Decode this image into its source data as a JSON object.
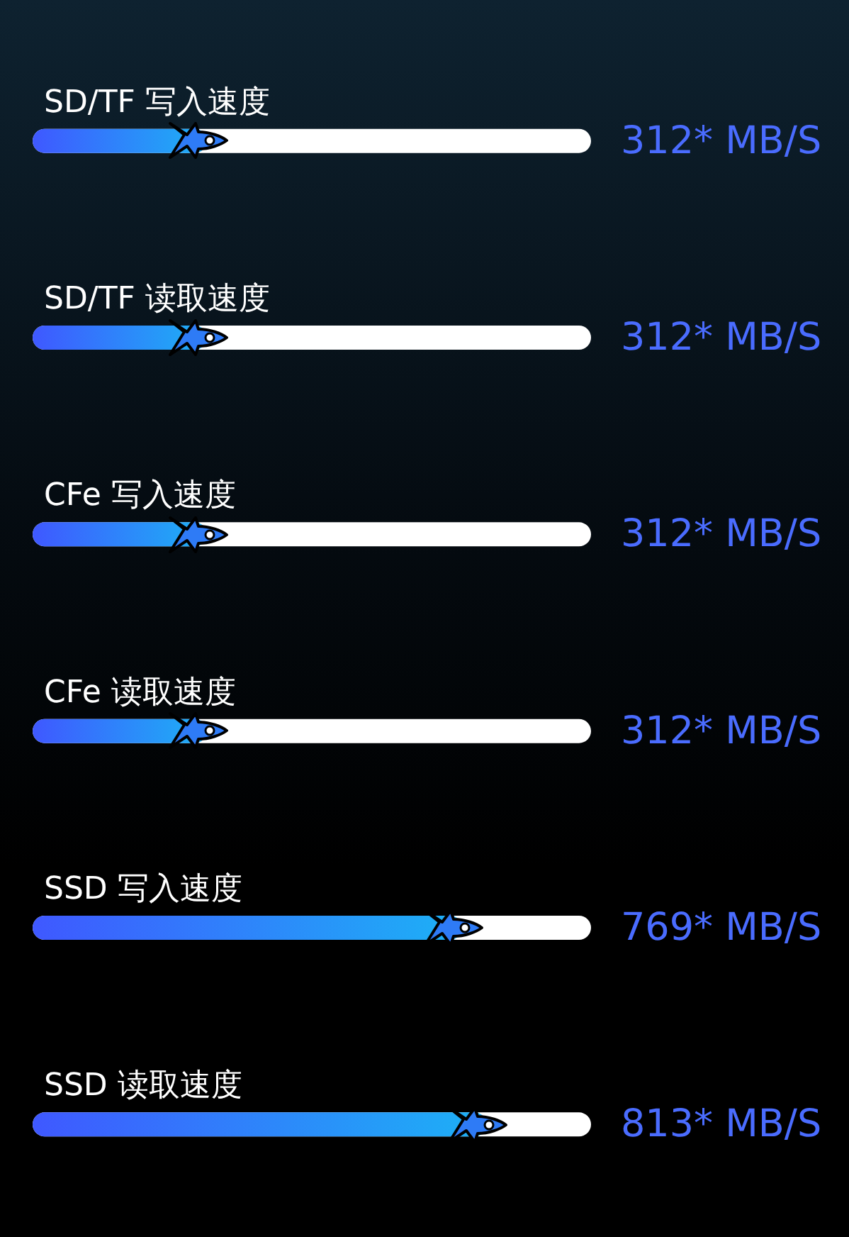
{
  "chart_data": {
    "type": "bar",
    "orientation": "horizontal",
    "categories": [
      "SD/TF 写入速度",
      "SD/TF 读取速度",
      "CFe 写入速度",
      "CFe 读取速度",
      "SSD 写入速度",
      "SSD 读取速度"
    ],
    "values": [
      312,
      312,
      312,
      312,
      769,
      813
    ],
    "value_labels": [
      "312* MB/S",
      "312* MB/S",
      "312* MB/S",
      "312* MB/S",
      "769* MB/S",
      "813* MB/S"
    ],
    "color": "#1db1f6",
    "grid": false
  }
}
